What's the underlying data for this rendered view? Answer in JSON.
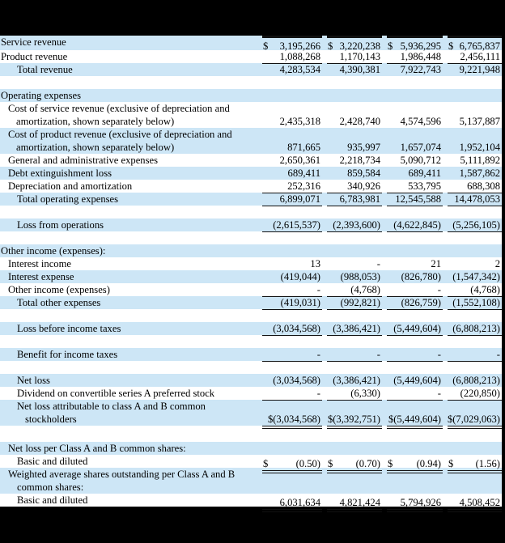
{
  "document": {
    "type": "income-statement-table",
    "columns_count": 4
  },
  "colors": {
    "stripe": "#cde6f6",
    "background": "#000000",
    "text": "#000000",
    "rule": "#111111"
  },
  "table": {
    "rows": [
      {
        "name": "service-revenue",
        "bg": "blue",
        "first": true,
        "rule_top": true,
        "label": "Service revenue",
        "indent": 1,
        "cells": [
          {
            "d": "$",
            "v": "3,195,266"
          },
          {
            "d": "$",
            "v": "3,220,238"
          },
          {
            "d": "$",
            "v": "5,936,295"
          },
          {
            "d": "$",
            "v": "6,765,837"
          }
        ]
      },
      {
        "name": "product-revenue",
        "bg": "white",
        "underline": "single",
        "label": "Product revenue",
        "indent": 1,
        "cells": [
          {
            "v": "1,088,268"
          },
          {
            "v": "1,170,143"
          },
          {
            "v": "1,986,448"
          },
          {
            "v": "2,456,111"
          }
        ]
      },
      {
        "name": "total-revenue",
        "bg": "blue",
        "label": "Total revenue",
        "indent": 21,
        "cells": [
          {
            "v": "4,283,534"
          },
          {
            "v": "4,390,381"
          },
          {
            "v": "7,922,743"
          },
          {
            "v": "9,221,948"
          }
        ]
      },
      {
        "name": "spacer",
        "gap": true,
        "bg": "white",
        "h": 16
      },
      {
        "name": "operating-expenses-header",
        "bg": "blue",
        "label": "Operating expenses",
        "indent": 1
      },
      {
        "name": "cost-of-service-revenue",
        "bg": "white",
        "two_line": true,
        "label_lines": [
          "Cost of service revenue (exclusive of depreciation and",
          "amortization, shown separately below)"
        ],
        "indents": [
          10,
          20
        ],
        "cells": [
          {
            "v": "2,435,318"
          },
          {
            "v": "2,428,740"
          },
          {
            "v": "4,574,596"
          },
          {
            "v": "5,137,887"
          }
        ]
      },
      {
        "name": "cost-of-product-revenue",
        "bg": "blue",
        "two_line": true,
        "label_lines": [
          "Cost of product revenue (exclusive of depreciation and",
          "amortization, shown separately below)"
        ],
        "indents": [
          10,
          20
        ],
        "cells": [
          {
            "v": "871,665"
          },
          {
            "v": "935,997"
          },
          {
            "v": "1,657,074"
          },
          {
            "v": "1,952,104"
          }
        ]
      },
      {
        "name": "general-and-administrative-expenses",
        "bg": "white",
        "label": "General and administrative expenses",
        "indent": 10,
        "cells": [
          {
            "v": "2,650,361"
          },
          {
            "v": "2,218,734"
          },
          {
            "v": "5,090,712"
          },
          {
            "v": "5,111,892"
          }
        ]
      },
      {
        "name": "debt-extinguishment-loss",
        "bg": "blue",
        "label": "Debt extinguishment loss",
        "indent": 10,
        "cells": [
          {
            "v": "689,411"
          },
          {
            "v": "859,584"
          },
          {
            "v": "689,411"
          },
          {
            "v": "1,587,862"
          }
        ]
      },
      {
        "name": "depreciation-and-amortization",
        "bg": "white",
        "underline": "single",
        "label": "Depreciation and amortization",
        "indent": 10,
        "cells": [
          {
            "v": "252,316"
          },
          {
            "v": "340,926"
          },
          {
            "v": "533,795"
          },
          {
            "v": "688,308"
          }
        ]
      },
      {
        "name": "total-operating-expenses",
        "bg": "blue",
        "underline": "single",
        "label": "Total operating expenses",
        "indent": 21,
        "cells": [
          {
            "v": "6,899,071"
          },
          {
            "v": "6,783,981"
          },
          {
            "v": "12,545,588"
          },
          {
            "v": "14,478,053"
          }
        ]
      },
      {
        "name": "spacer",
        "gap": true,
        "bg": "white",
        "h": 16
      },
      {
        "name": "loss-from-operations",
        "bg": "blue",
        "underline": "single",
        "label": "Loss from operations",
        "indent": 21,
        "cells": [
          {
            "v": "(2,615,537)"
          },
          {
            "v": "(2,393,600)"
          },
          {
            "v": "(4,622,845)"
          },
          {
            "v": "(5,256,105)"
          }
        ]
      },
      {
        "name": "spacer",
        "gap": true,
        "bg": "white",
        "h": 16
      },
      {
        "name": "other-income-expenses-header",
        "bg": "blue",
        "label": "Other income (expenses):",
        "indent": 1
      },
      {
        "name": "interest-income",
        "bg": "white",
        "label": "Interest income",
        "indent": 10,
        "cells": [
          {
            "v": "13"
          },
          {
            "v": "-"
          },
          {
            "v": "21"
          },
          {
            "v": "2"
          }
        ]
      },
      {
        "name": "interest-expense",
        "bg": "blue",
        "label": "Interest expense",
        "indent": 10,
        "cells": [
          {
            "v": "(419,044)"
          },
          {
            "v": "(988,053)"
          },
          {
            "v": "(826,780)"
          },
          {
            "v": "(1,547,342)"
          }
        ]
      },
      {
        "name": "other-income-expenses",
        "bg": "white",
        "underline": "single",
        "label": "Other income (expenses)",
        "indent": 10,
        "cells": [
          {
            "v": "-"
          },
          {
            "v": "(4,768)"
          },
          {
            "v": "-"
          },
          {
            "v": "(4,768)"
          }
        ]
      },
      {
        "name": "total-other-expenses",
        "bg": "blue",
        "underline": "single",
        "label": "Total other expenses",
        "indent": 21,
        "cells": [
          {
            "v": "(419,031)"
          },
          {
            "v": "(992,821)"
          },
          {
            "v": "(826,759)"
          },
          {
            "v": "(1,552,108)"
          }
        ]
      },
      {
        "name": "spacer",
        "gap": true,
        "bg": "white",
        "h": 16
      },
      {
        "name": "loss-before-income-taxes",
        "bg": "blue",
        "underline": "single",
        "label": "Loss before income taxes",
        "indent": 21,
        "cells": [
          {
            "v": "(3,034,568)"
          },
          {
            "v": "(3,386,421)"
          },
          {
            "v": "(5,449,604)"
          },
          {
            "v": "(6,808,213)"
          }
        ]
      },
      {
        "name": "spacer",
        "gap": true,
        "bg": "white",
        "h": 16
      },
      {
        "name": "benefit-for-income-taxes",
        "bg": "blue",
        "underline": "single",
        "label": "Benefit for income taxes",
        "indent": 21,
        "cells": [
          {
            "v": "-"
          },
          {
            "v": "-"
          },
          {
            "v": "-"
          },
          {
            "v": "-"
          }
        ]
      },
      {
        "name": "spacer",
        "gap": true,
        "bg": "white",
        "h": 16
      },
      {
        "name": "net-loss",
        "bg": "blue",
        "label": "Net loss",
        "indent": 21,
        "cells": [
          {
            "v": "(3,034,568)"
          },
          {
            "v": "(3,386,421)"
          },
          {
            "v": "(5,449,604)"
          },
          {
            "v": "(6,808,213)"
          }
        ]
      },
      {
        "name": "dividend-on-convertible-preferred-stock",
        "bg": "white",
        "underline": "single",
        "label": "Dividend on convertible series A preferred stock",
        "indent": 21,
        "cells": [
          {
            "v": "-"
          },
          {
            "v": "(6,330)"
          },
          {
            "v": "-"
          },
          {
            "v": "(220,850)"
          }
        ]
      },
      {
        "name": "net-loss-attributable-to-common-stockholders",
        "bg": "blue",
        "two_line": true,
        "underline": "double",
        "label_lines": [
          "Net loss attributable to class A and B common",
          "stockholders"
        ],
        "indents": [
          21,
          31
        ],
        "cells": [
          {
            "v": "$(3,034,568)"
          },
          {
            "v": "$(3,392,751)"
          },
          {
            "v": "$(5,449,604)"
          },
          {
            "v": "$(7,029,063)"
          }
        ]
      },
      {
        "name": "spacer",
        "gap": true,
        "bg": "white",
        "h": 20
      },
      {
        "name": "net-loss-per-share-header",
        "bg": "blue",
        "label": "Net loss per Class A and B common shares:",
        "indent": 10
      },
      {
        "name": "net-loss-per-share-basic-and-diluted",
        "bg": "white",
        "underline": "double",
        "label": "Basic and diluted",
        "indent": 21,
        "cells": [
          {
            "d": "$",
            "v": "(0.50)"
          },
          {
            "d": "$",
            "v": "(0.70)"
          },
          {
            "d": "$",
            "v": "(0.94)"
          },
          {
            "d": "$",
            "v": "(1.56)"
          }
        ]
      },
      {
        "name": "weighted-average-shares-header",
        "bg": "blue",
        "two_line": true,
        "label_lines": [
          "Weighted average shares outstanding per Class A and B",
          "common shares:"
        ],
        "indents": [
          10,
          21
        ]
      },
      {
        "name": "weighted-average-shares-basic-and-diluted",
        "bg": "white",
        "underline": "double",
        "label": "Basic and diluted",
        "indent": 21,
        "cells": [
          {
            "v": "6,031,634"
          },
          {
            "v": "4,821,424"
          },
          {
            "v": "5,794,926"
          },
          {
            "v": "4,508,452"
          }
        ]
      }
    ]
  }
}
